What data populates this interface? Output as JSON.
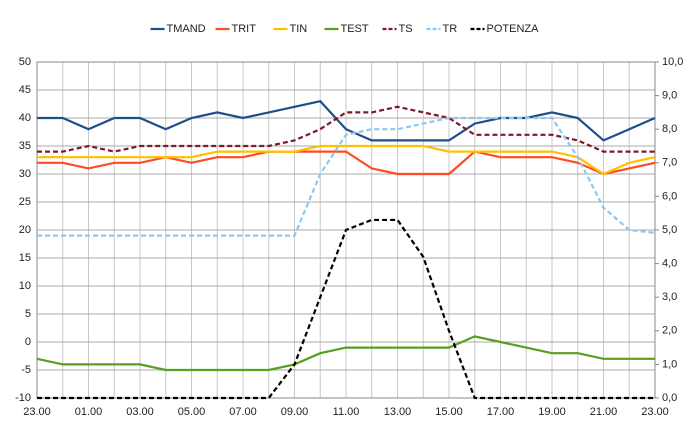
{
  "chart_data": {
    "type": "line",
    "categories": [
      "23.00",
      null,
      "01.00",
      null,
      "03.00",
      null,
      "05.00",
      null,
      "07.00",
      null,
      "09.00",
      null,
      "11.00",
      null,
      "13.00",
      null,
      "15.00",
      null,
      "17.00",
      null,
      "19.00",
      null,
      "21.00",
      null,
      "23.00"
    ],
    "series": [
      {
        "name": "TMAND",
        "color": "#1f4e8c",
        "dash": false,
        "values": [
          40,
          40,
          38,
          40,
          40,
          38,
          40,
          41,
          40,
          41,
          42,
          43,
          38,
          36,
          36,
          36,
          36,
          39,
          40,
          40,
          41,
          40,
          36,
          38,
          40
        ]
      },
      {
        "name": "TRIT",
        "color": "#ff4b1f",
        "dash": false,
        "values": [
          32,
          32,
          31,
          32,
          32,
          33,
          32,
          33,
          33,
          34,
          34,
          34,
          34,
          31,
          30,
          30,
          30,
          34,
          33,
          33,
          33,
          32,
          30,
          31,
          32
        ]
      },
      {
        "name": "TIN",
        "color": "#ffc000",
        "dash": false,
        "values": [
          33,
          33,
          33,
          33,
          33,
          33,
          33,
          34,
          34,
          34,
          34,
          35,
          35,
          35,
          35,
          35,
          34,
          34,
          34,
          34,
          34,
          33,
          30,
          32,
          33
        ]
      },
      {
        "name": "TEST",
        "color": "#5a9e1f",
        "dash": false,
        "values": [
          -3,
          -4,
          -4,
          -4,
          -4,
          -5,
          -5,
          -5,
          -5,
          -5,
          -4,
          -2,
          -1,
          -1,
          -1,
          -1,
          -1,
          1,
          0,
          -1,
          -2,
          -2,
          -3,
          -3,
          -3
        ]
      },
      {
        "name": "TS",
        "color": "#7b1a2a",
        "dash": true,
        "values": [
          34,
          34,
          35,
          34,
          35,
          35,
          35,
          35,
          35,
          35,
          36,
          38,
          41,
          41,
          42,
          41,
          40,
          37,
          37,
          37,
          37,
          36,
          34,
          34,
          34
        ]
      },
      {
        "name": "TR",
        "color": "#8ec8f0",
        "dash": true,
        "values": [
          19,
          19,
          19,
          19,
          19,
          19,
          19,
          19,
          19,
          19,
          19,
          30,
          37,
          38,
          38,
          39,
          40,
          40,
          40,
          40,
          40,
          33,
          24,
          20,
          19.5
        ]
      },
      {
        "name": "POTENZA",
        "color": "#000000",
        "dash": true,
        "axis": "y2",
        "values": [
          0,
          0,
          0,
          0,
          0,
          0,
          0,
          0,
          0,
          0,
          1.0,
          3.0,
          5.0,
          5.3,
          5.3,
          4.2,
          2.0,
          0,
          0,
          0,
          0,
          0,
          0,
          0,
          0
        ]
      }
    ],
    "ylim": [
      -10,
      50
    ],
    "yticks": [
      -10,
      -5,
      0,
      5,
      10,
      15,
      20,
      25,
      30,
      35,
      40,
      45,
      50
    ],
    "y2lim": [
      0,
      10
    ],
    "y2ticks": [
      {
        "value": 0,
        "label": "0,0"
      },
      {
        "value": 1,
        "label": "1,0"
      },
      {
        "value": 2,
        "label": "2,0"
      },
      {
        "value": 3,
        "label": "3,0"
      },
      {
        "value": 4,
        "label": "4,0"
      },
      {
        "value": 5,
        "label": "5,0"
      },
      {
        "value": 6,
        "label": "6,0"
      },
      {
        "value": 7,
        "label": "7,0"
      },
      {
        "value": 8,
        "label": "8,0"
      },
      {
        "value": 9,
        "label": "9,0"
      },
      {
        "value": 10,
        "label": "10,0"
      }
    ],
    "grid": true,
    "legend": "top"
  }
}
